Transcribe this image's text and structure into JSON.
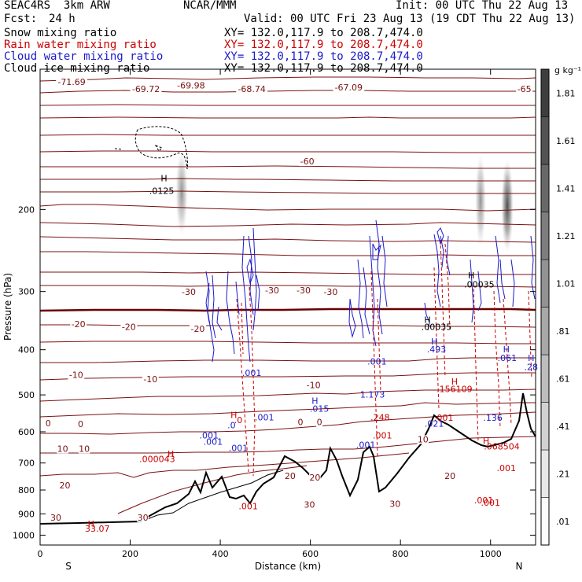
{
  "header": {
    "experiment": "SEAC4RS  3km ARW",
    "model_center": "NCAR/MMM",
    "init": "Init: 00 UTC Thu 22 Aug 13",
    "fcst_label": "Fcst:",
    "fcst_value": "24 h",
    "valid": "Valid: 00 UTC Fri 23 Aug 13 (19 CDT Thu 22 Aug 13)",
    "fields": [
      {
        "name": "Snow mixing ratio",
        "xy": "XY= 132.0,117.9 to 208.7,474.0",
        "color": "#000000"
      },
      {
        "name": "Rain water mixing ratio",
        "xy": "XY= 132.0,117.9 to 208.7,474.0",
        "color": "#cc0000"
      },
      {
        "name": "Cloud water mixing ratio",
        "xy": "XY= 132.0,117.9 to 208.7,474.0",
        "color": "#1a1acc"
      },
      {
        "name": "Cloud ice mixing ratio",
        "xy": "XY= 132.0,117.9 to 208.7,474.0",
        "color": "#000000"
      }
    ]
  },
  "chart_data": {
    "type": "cross-section",
    "xlabel": "Distance (km)",
    "ylabel": "Pressure (hPa)",
    "xlim": [
      0,
      1100
    ],
    "ylim": [
      1050,
      100
    ],
    "y_scale": "log",
    "x_ticks": [
      0,
      200,
      400,
      600,
      800,
      1000
    ],
    "y_ticks": [
      200,
      300,
      400,
      500,
      600,
      700,
      800,
      900,
      1000
    ],
    "end_labels": {
      "left": "S",
      "right": "N"
    },
    "colorbar": {
      "unit": "g kg⁻¹",
      "levels": [
        ".01",
        ".21",
        ".41",
        ".61",
        ".81",
        "1.01",
        "1.21",
        "1.41",
        "1.61",
        "1.81"
      ]
    },
    "temperature_contours": {
      "color": "#7a1010",
      "levels": [
        30,
        20,
        10,
        0,
        -10,
        -20,
        -30,
        -60
      ],
      "labels": [
        {
          "text": "-71.69",
          "x": 70,
          "p": 108
        },
        {
          "text": "-69.72",
          "x": 235,
          "p": 112
        },
        {
          "text": "-69.98",
          "x": 335,
          "p": 110
        },
        {
          "text": "-68.74",
          "x": 470,
          "p": 112
        },
        {
          "text": "-67.09",
          "x": 685,
          "p": 111
        },
        {
          "text": "-65",
          "x": 1075,
          "p": 112
        },
        {
          "text": "-60",
          "x": 593,
          "p": 160
        },
        {
          "text": "-30",
          "x": 330,
          "p": 305
        },
        {
          "text": "-30",
          "x": 515,
          "p": 303
        },
        {
          "text": "-30",
          "x": 585,
          "p": 303
        },
        {
          "text": "-30",
          "x": 645,
          "p": 305
        },
        {
          "text": "-20",
          "x": 85,
          "p": 358
        },
        {
          "text": "-20",
          "x": 197,
          "p": 363
        },
        {
          "text": "-20",
          "x": 350,
          "p": 366
        },
        {
          "text": "-10",
          "x": 80,
          "p": 460
        },
        {
          "text": "-10",
          "x": 245,
          "p": 470
        },
        {
          "text": "-10",
          "x": 607,
          "p": 484
        },
        {
          "text": "0",
          "x": 18,
          "p": 584
        },
        {
          "text": "0",
          "x": 90,
          "p": 586
        },
        {
          "text": "0",
          "x": 578,
          "p": 581
        },
        {
          "text": "0",
          "x": 620,
          "p": 581
        },
        {
          "text": "10",
          "x": 50,
          "p": 662
        },
        {
          "text": "10",
          "x": 98,
          "p": 662
        },
        {
          "text": "10",
          "x": 850,
          "p": 632
        },
        {
          "text": "20",
          "x": 55,
          "p": 793
        },
        {
          "text": "20",
          "x": 555,
          "p": 758
        },
        {
          "text": "20",
          "x": 610,
          "p": 764
        },
        {
          "text": "20",
          "x": 910,
          "p": 758
        },
        {
          "text": "30",
          "x": 35,
          "p": 930
        },
        {
          "text": "30",
          "x": 228,
          "p": 930
        },
        {
          "text": "30",
          "x": 598,
          "p": 873
        },
        {
          "text": "30",
          "x": 788,
          "p": 870
        }
      ]
    },
    "rain_labels": [
      {
        "text": "H",
        "x": 290,
        "p": 680
      },
      {
        "text": ".000043",
        "x": 260,
        "p": 697
      },
      {
        "text": "H",
        "x": 430,
        "p": 560
      },
      {
        "text": ".0",
        "x": 440,
        "p": 575
      },
      {
        "text": "H",
        "x": 920,
        "p": 475
      },
      {
        "text": ".156109",
        "x": 920,
        "p": 493
      },
      {
        "text": ".248",
        "x": 755,
        "p": 567
      },
      {
        "text": ".001",
        "x": 760,
        "p": 620
      },
      {
        "text": ".001",
        "x": 896,
        "p": 568
      },
      {
        "text": "H",
        "x": 990,
        "p": 637
      },
      {
        "text": ".068504",
        "x": 1025,
        "p": 655
      },
      {
        "text": ".001",
        "x": 1035,
        "p": 728
      },
      {
        "text": ".001",
        "x": 985,
        "p": 855
      },
      {
        "text": ".001",
        "x": 462,
        "p": 880
      },
      {
        "text": ".001",
        "x": 1000,
        "p": 865
      }
    ],
    "cloud_water_labels": [
      {
        "text": ".001",
        "x": 470,
        "p": 455
      },
      {
        "text": "H",
        "x": 610,
        "p": 523
      },
      {
        "text": ".015",
        "x": 620,
        "p": 543
      },
      {
        "text": ".001",
        "x": 498,
        "p": 567
      },
      {
        "text": ".0",
        "x": 425,
        "p": 590
      },
      {
        "text": ".001",
        "x": 375,
        "p": 620
      },
      {
        "text": ".001",
        "x": 384,
        "p": 640
      },
      {
        "text": ".001",
        "x": 723,
        "p": 650
      },
      {
        "text": ".001",
        "x": 748,
        "p": 430
      },
      {
        "text": "1.173",
        "x": 738,
        "p": 507
      },
      {
        "text": "H",
        "x": 875,
        "p": 390
      },
      {
        "text": ".493",
        "x": 880,
        "p": 405
      },
      {
        "text": "H",
        "x": 1035,
        "p": 405
      },
      {
        "text": ".061",
        "x": 1037,
        "p": 423
      },
      {
        "text": ".136",
        "x": 1005,
        "p": 568
      },
      {
        "text": "H",
        "x": 1090,
        "p": 423
      },
      {
        "text": ".28",
        "x": 1090,
        "p": 442
      },
      {
        "text": ".021",
        "x": 875,
        "p": 585
      },
      {
        "text": ".001",
        "x": 440,
        "p": 660
      }
    ],
    "ice_labels": [
      {
        "text": "H",
        "x": 275,
        "p": 174
      },
      {
        "text": ".0125",
        "x": 270,
        "p": 185
      },
      {
        "text": "H",
        "x": 957,
        "p": 281
      },
      {
        "text": ".00035",
        "x": 975,
        "p": 294
      },
      {
        "text": "H",
        "x": 860,
        "p": 350
      },
      {
        "text": ".00035",
        "x": 880,
        "p": 363
      }
    ],
    "surface_labels": [
      {
        "text": "H",
        "x": 113,
        "p": 960
      },
      {
        "text": "33.07",
        "x": 127,
        "p": 982
      }
    ]
  }
}
